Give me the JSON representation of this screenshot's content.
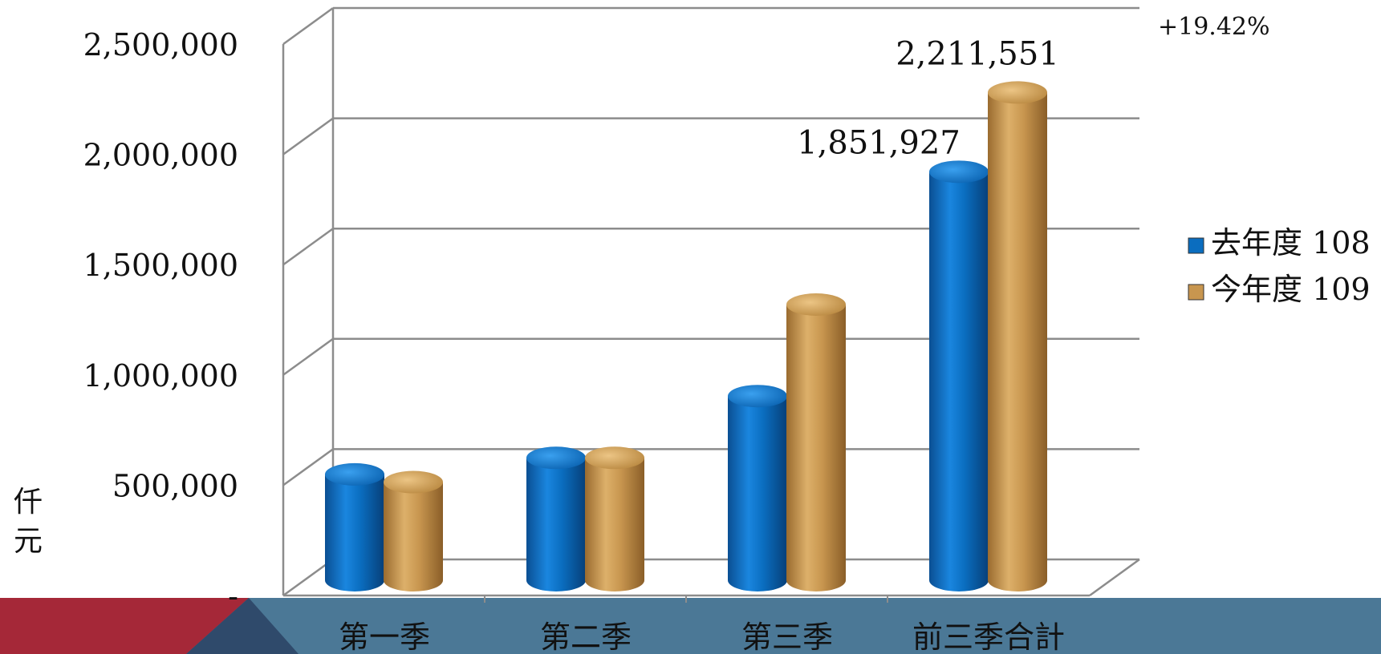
{
  "chart_data": {
    "type": "bar",
    "style": "3d-cylinder",
    "categories": [
      "第一季",
      "第二季",
      "第三季",
      "前三季合計"
    ],
    "series": [
      {
        "name": "去年度 108",
        "color": "#0a6dbf",
        "values": [
          480000,
          555000,
          835000,
          1851927
        ]
      },
      {
        "name": "今年度 109",
        "color": "#c8964f",
        "values": [
          445000,
          555000,
          1250000,
          2211551
        ]
      }
    ],
    "ylim": [
      0,
      2500000
    ],
    "yticks": [
      0,
      500000,
      1000000,
      1500000,
      2000000,
      2500000
    ],
    "ytick_labels": [
      "-",
      "500,000",
      "1,000,000",
      "1,500,000",
      "2,000,000",
      "2,500,000"
    ],
    "ylabel": "仟元",
    "data_labels": [
      {
        "series": 0,
        "category": 3,
        "text": "1,851,927"
      },
      {
        "series": 1,
        "category": 3,
        "text": "2,211,551"
      }
    ],
    "annotation": "+19.42%",
    "legend_position": "right",
    "grid": true
  },
  "decor": {
    "band_color": "#4b7896",
    "red_color": "#a52838",
    "navy_color": "#2f4a6b"
  }
}
